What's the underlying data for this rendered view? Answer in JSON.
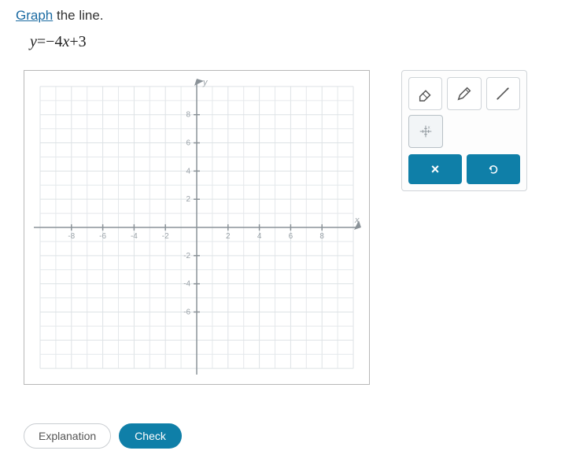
{
  "instruction": {
    "graph_word": "Graph",
    "rest": " the line."
  },
  "equation": {
    "lhs": "y",
    "rhs_parts": [
      "=",
      "−",
      "4",
      "x",
      "+",
      "3"
    ]
  },
  "graph": {
    "xlim": [
      -10,
      10
    ],
    "ylim": [
      -10,
      10
    ],
    "xtick_step": 2,
    "ytick_step": 2,
    "x_tick_labels": [
      -8,
      -6,
      -4,
      -2,
      2,
      4,
      6,
      8
    ],
    "y_tick_labels": [
      -6,
      -4,
      -2,
      2,
      4,
      6,
      8
    ],
    "x_axis_label": "x",
    "y_axis_label": "y",
    "grid_color": "#e4e8eb",
    "grid_major_color": "#dde2e5",
    "axis_color": "#8a9298",
    "label_color": "#9aa2a8",
    "background_color": "#ffffff"
  },
  "tools": {
    "eraser_name": "eraser",
    "pencil_name": "pencil",
    "line_name": "line",
    "point_name": "point-marker"
  },
  "actions": {
    "clear_label": "×",
    "undo_label": "↺"
  },
  "bottom": {
    "explanation_label": "Explanation",
    "check_label": "Check"
  },
  "colors": {
    "primary": "#0f7fa8",
    "link": "#1a6aa2",
    "text": "#333333",
    "button_border": "#cfd4d8"
  }
}
